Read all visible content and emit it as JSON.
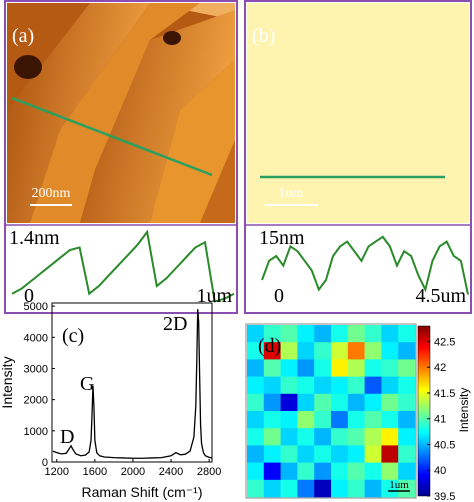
{
  "chart_data": [
    {
      "type": "afm",
      "panel_label": "(a)",
      "scale_bar": "200nm",
      "profile_label_top": "1.4nm",
      "profile_label_start": "0",
      "profile_label_end": "1um",
      "color": "#2a8a2a",
      "profile_ylim": [
        0,
        1.4
      ],
      "profile": [
        0.2,
        0.3,
        0.45,
        0.6,
        0.75,
        0.9,
        1.05,
        1.1,
        0.2,
        0.35,
        0.55,
        0.75,
        0.95,
        1.15,
        1.4,
        0.35,
        0.5,
        0.7,
        0.9,
        1.1,
        1.2,
        0.05,
        0.1,
        0.2
      ]
    },
    {
      "type": "afm",
      "panel_label": "(b)",
      "scale_bar": "1um",
      "profile_label_top": "15nm",
      "profile_label_start": "0",
      "profile_label_end": "4.5um",
      "color": "#2a8a2a",
      "profile_ylim": [
        0,
        15
      ],
      "profile": [
        5,
        9,
        10,
        8,
        12,
        11,
        9,
        7,
        3,
        5,
        10,
        12,
        13,
        11,
        9,
        12,
        13,
        14,
        12,
        8,
        11,
        10,
        6,
        3,
        9,
        12,
        13,
        10,
        9,
        2
      ]
    },
    {
      "type": "line",
      "panel_label": "(c)",
      "xlabel": "Raman Shift (cm⁻¹)",
      "ylabel": "Intensity",
      "color": "#000000",
      "annotations": [
        "D",
        "G",
        "2D"
      ],
      "xlim": [
        1150,
        2830
      ],
      "ylim": [
        0,
        5100
      ],
      "xticks": [
        1200,
        1600,
        2000,
        2400,
        2800
      ],
      "yticks": [
        0,
        1000,
        2000,
        3000,
        4000,
        5000
      ],
      "x": [
        1160,
        1200,
        1250,
        1300,
        1330,
        1350,
        1370,
        1400,
        1450,
        1500,
        1540,
        1560,
        1570,
        1580,
        1590,
        1600,
        1620,
        1650,
        1700,
        1800,
        1900,
        2000,
        2100,
        2200,
        2300,
        2400,
        2450,
        2500,
        2550,
        2600,
        2640,
        2660,
        2670,
        2680,
        2690,
        2700,
        2710,
        2720,
        2740,
        2760,
        2800,
        2830
      ],
      "values": [
        350,
        300,
        260,
        280,
        420,
        520,
        400,
        260,
        200,
        220,
        320,
        700,
        1500,
        2450,
        1800,
        700,
        300,
        200,
        160,
        140,
        130,
        120,
        120,
        130,
        140,
        200,
        300,
        230,
        250,
        350,
        800,
        1800,
        3200,
        4900,
        4500,
        2800,
        1200,
        600,
        300,
        200,
        150,
        130
      ]
    },
    {
      "type": "heatmap",
      "panel_label": "(d)",
      "scale_bar": "1um",
      "colorbar_label": "Intensity",
      "zlim": [
        39.5,
        42.8
      ],
      "zticks": [
        39.5,
        40,
        40.5,
        41,
        41.5,
        42,
        42.5
      ],
      "values": [
        [
          40.6,
          40.9,
          41.0,
          40.7,
          40.5,
          40.8,
          41.1,
          40.9,
          40.6,
          40.8
        ],
        [
          40.8,
          42.5,
          41.3,
          40.6,
          40.9,
          41.4,
          42.0,
          41.2,
          40.7,
          40.5
        ],
        [
          40.5,
          41.0,
          40.7,
          40.4,
          40.8,
          41.6,
          41.3,
          40.8,
          40.9,
          41.1
        ],
        [
          40.7,
          40.6,
          40.9,
          40.8,
          40.6,
          40.7,
          40.9,
          40.2,
          40.6,
          40.8
        ],
        [
          40.9,
          40.4,
          39.8,
          40.6,
          41.0,
          40.8,
          40.5,
          40.7,
          41.1,
          40.9
        ],
        [
          40.6,
          40.8,
          40.7,
          41.2,
          40.9,
          40.3,
          40.8,
          41.0,
          40.8,
          40.5
        ],
        [
          40.8,
          41.1,
          40.6,
          40.8,
          40.5,
          40.9,
          41.0,
          41.3,
          41.6,
          40.7
        ],
        [
          40.5,
          40.7,
          40.9,
          40.6,
          40.8,
          40.6,
          40.7,
          41.4,
          42.6,
          40.9
        ],
        [
          40.7,
          39.9,
          40.5,
          40.9,
          40.4,
          40.8,
          41.0,
          40.8,
          41.2,
          40.6
        ],
        [
          40.9,
          40.6,
          40.8,
          40.3,
          39.7,
          40.7,
          40.9,
          40.5,
          40.8,
          41.0
        ]
      ]
    }
  ]
}
